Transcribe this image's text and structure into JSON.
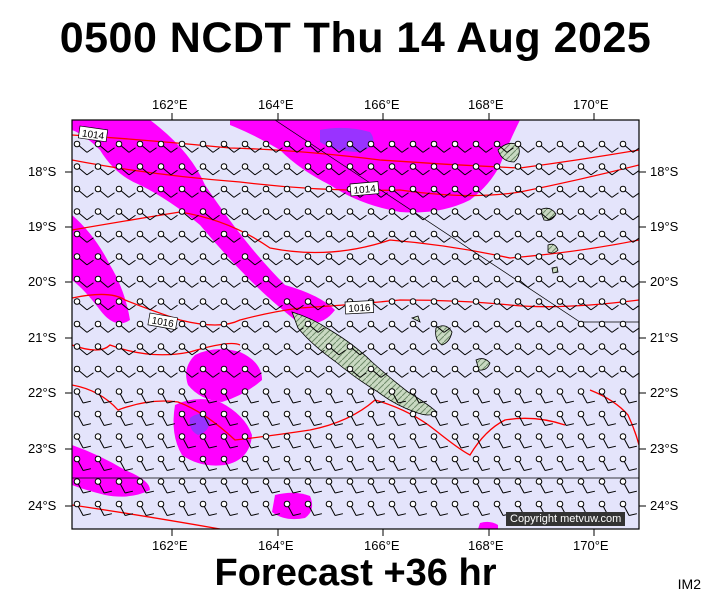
{
  "header": {
    "title": "0500 NCDT Thu 14 Aug 2025"
  },
  "footer": {
    "forecast": "Forecast +36 hr",
    "badge": "IM2"
  },
  "map": {
    "lon_ticks": [
      "162°E",
      "164°E",
      "166°E",
      "168°E",
      "170°E"
    ],
    "lat_ticks": [
      "18°S",
      "19°S",
      "20°S",
      "21°S",
      "22°S",
      "23°S",
      "24°S"
    ],
    "isobar_labels": [
      "1014",
      "1014",
      "1016",
      "1016"
    ],
    "copyright": "Copyright metvuw.com",
    "colors": {
      "sea": "#e4e4fb",
      "wind_strong": "#ff00ff",
      "wind_stronger": "#9933ff",
      "isobar": "#ff0000",
      "land": "#b5c9b0",
      "barb": "#000000"
    }
  }
}
